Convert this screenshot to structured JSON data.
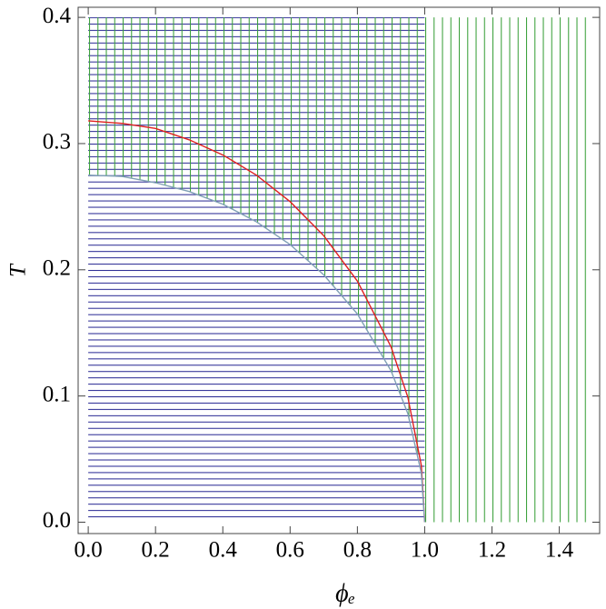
{
  "chart_data": {
    "type": "region",
    "xlabel": "ϕₑ",
    "ylabel": "T",
    "xlim": [
      -0.03,
      1.52
    ],
    "ylim": [
      -0.009,
      0.408
    ],
    "xticks": [
      {
        "value": 0,
        "label": "0.0"
      },
      {
        "value": 0.2,
        "label": "0.2"
      },
      {
        "value": 0.4,
        "label": "0.4"
      },
      {
        "value": 0.6,
        "label": "0.6"
      },
      {
        "value": 0.8,
        "label": "0.8"
      },
      {
        "value": 1,
        "label": "1.0"
      },
      {
        "value": 1.2,
        "label": "1.2"
      },
      {
        "value": 1.4,
        "label": "1.4"
      }
    ],
    "yticks": [
      {
        "value": 0,
        "label": "0.0"
      },
      0.1,
      0.2,
      0.3,
      0.4
    ],
    "regions": [
      {
        "hatch": "horizontal",
        "color": "#2e2e96",
        "x": [
          0,
          1
        ],
        "y": [
          0,
          0.4
        ]
      },
      {
        "hatch": "vertical",
        "color": "#3aa03a",
        "x": [
          0,
          1.5
        ],
        "y": [
          0,
          0.4
        ],
        "exclude_below_series": 1
      }
    ],
    "series": [
      {
        "color": "#e02020",
        "x": [
          0,
          0.1,
          0.2,
          0.3,
          0.4,
          0.5,
          0.6,
          0.7,
          0.8,
          0.9,
          0.95,
          0.99,
          1
        ],
        "values": [
          0.318,
          0.316,
          0.312,
          0.303,
          0.291,
          0.275,
          0.254,
          0.227,
          0.191,
          0.139,
          0.099,
          0.045,
          0
        ]
      },
      {
        "color": "#7f9fb5",
        "x": [
          0,
          0.1,
          0.2,
          0.3,
          0.4,
          0.5,
          0.6,
          0.7,
          0.8,
          0.9,
          0.95,
          0.99,
          1
        ],
        "values": [
          0.275,
          0.274,
          0.269,
          0.262,
          0.252,
          0.238,
          0.22,
          0.196,
          0.165,
          0.12,
          0.086,
          0.039,
          0
        ]
      }
    ]
  }
}
